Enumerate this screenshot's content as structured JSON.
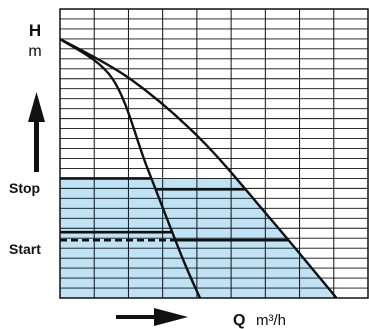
{
  "chart_data": {
    "type": "line",
    "title": "",
    "y_axis": {
      "symbol": "H",
      "unit": "m"
    },
    "x_axis": {
      "symbol": "Q",
      "unit": "m³/h"
    },
    "levels": {
      "stop": "Stop",
      "start": "Start"
    },
    "grid": true,
    "series": [
      {
        "x": [
          0,
          1.5,
          2.5,
          3.5,
          4.0
        ],
        "y": [
          26,
          22,
          13,
          4,
          0
        ]
      },
      {
        "x": [
          0,
          2.0,
          4.0,
          6.0,
          7.9
        ],
        "y": [
          26,
          22,
          16,
          8,
          0
        ]
      }
    ],
    "colors": {
      "fill": "#bfe3f5",
      "grid": "#111111",
      "curve": "#111111"
    }
  }
}
